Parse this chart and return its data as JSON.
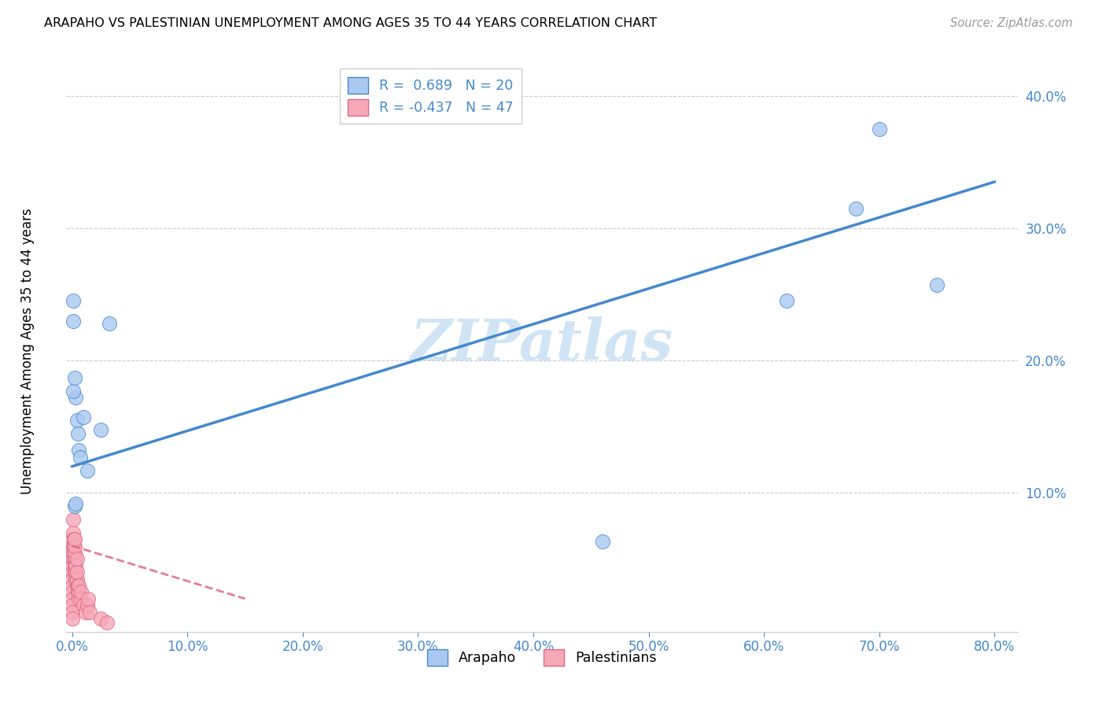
{
  "title": "ARAPAHO VS PALESTINIAN UNEMPLOYMENT AMONG AGES 35 TO 44 YEARS CORRELATION CHART",
  "source": "Source: ZipAtlas.com",
  "ylabel": "Unemployment Among Ages 35 to 44 years",
  "xlim": [
    -0.005,
    0.82
  ],
  "ylim": [
    -0.005,
    0.43
  ],
  "xticks": [
    0.0,
    0.1,
    0.2,
    0.3,
    0.4,
    0.5,
    0.6,
    0.7,
    0.8
  ],
  "yticks": [
    0.1,
    0.2,
    0.3,
    0.4
  ],
  "xticklabels": [
    "0.0%",
    "10.0%",
    "20.0%",
    "30.0%",
    "40.0%",
    "50.0%",
    "60.0%",
    "70.0%",
    "80.0%"
  ],
  "yticklabels": [
    "10.0%",
    "20.0%",
    "30.0%",
    "40.0%"
  ],
  "arapaho_R": 0.689,
  "arapaho_N": 20,
  "palestinian_R": -0.437,
  "palestinian_N": 47,
  "arapaho_color": "#aac8f0",
  "arapaho_line_color": "#4488cc",
  "palestinian_color": "#f5a8b8",
  "palestinian_line_color": "#e06880",
  "watermark_color": "#d0e4f5",
  "arapaho_x": [
    0.001,
    0.001,
    0.002,
    0.003,
    0.003,
    0.004,
    0.005,
    0.006,
    0.007,
    0.01,
    0.013,
    0.025,
    0.032,
    0.62,
    0.68,
    0.7,
    0.75,
    0.001,
    0.002,
    0.46
  ],
  "arapaho_y": [
    0.245,
    0.23,
    0.09,
    0.092,
    0.172,
    0.155,
    0.145,
    0.132,
    0.127,
    0.157,
    0.117,
    0.148,
    0.228,
    0.245,
    0.315,
    0.375,
    0.257,
    0.177,
    0.187,
    0.063
  ],
  "palestinian_x": [
    0.0005,
    0.0005,
    0.0005,
    0.0005,
    0.0005,
    0.0005,
    0.0005,
    0.0005,
    0.0005,
    0.0005,
    0.0005,
    0.0005,
    0.001,
    0.001,
    0.001,
    0.001,
    0.0015,
    0.0015,
    0.0015,
    0.002,
    0.002,
    0.002,
    0.002,
    0.002,
    0.0025,
    0.0025,
    0.003,
    0.003,
    0.003,
    0.004,
    0.004,
    0.004,
    0.004,
    0.005,
    0.005,
    0.006,
    0.006,
    0.006,
    0.008,
    0.008,
    0.01,
    0.012,
    0.013,
    0.014,
    0.015,
    0.025,
    0.03
  ],
  "palestinian_y": [
    0.065,
    0.055,
    0.05,
    0.045,
    0.04,
    0.035,
    0.03,
    0.025,
    0.02,
    0.015,
    0.01,
    0.005,
    0.055,
    0.06,
    0.07,
    0.08,
    0.05,
    0.06,
    0.065,
    0.045,
    0.05,
    0.055,
    0.06,
    0.065,
    0.04,
    0.045,
    0.035,
    0.04,
    0.045,
    0.03,
    0.035,
    0.04,
    0.05,
    0.025,
    0.03,
    0.02,
    0.025,
    0.03,
    0.02,
    0.025,
    0.015,
    0.01,
    0.015,
    0.02,
    0.01,
    0.005,
    0.002
  ],
  "arapaho_line_x": [
    0.0,
    0.8
  ],
  "arapaho_line_y": [
    0.12,
    0.335
  ],
  "palestinian_line_x": [
    0.0,
    0.15
  ],
  "palestinian_line_y": [
    0.06,
    0.02
  ]
}
